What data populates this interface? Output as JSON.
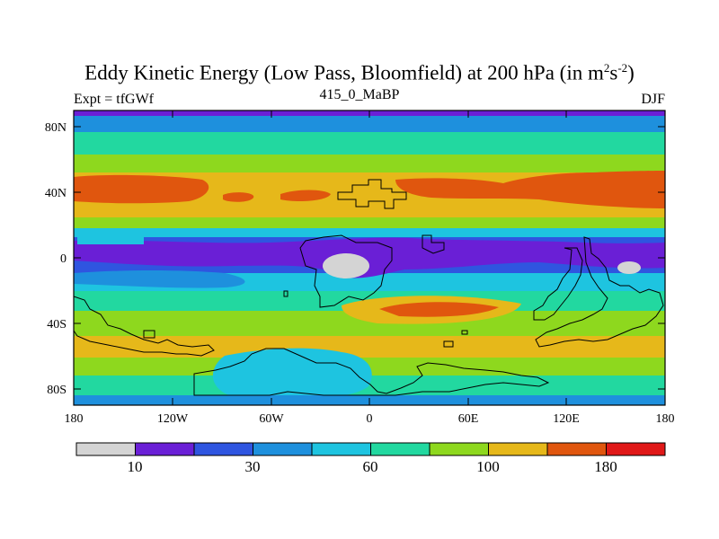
{
  "title_main": "Eddy Kinetic Energy (Low Pass, Bloomfield) at 200 hPa (in m",
  "title_sup1": "2",
  "title_mid": "s",
  "title_sup2": "-2",
  "title_end": ")",
  "experiment": "Expt = tfGWf",
  "subtitle": "415_0_MaBP",
  "season": "DJF",
  "y_ticks": [
    "80N",
    "40N",
    "0",
    "40S",
    "80S"
  ],
  "x_ticks": [
    "180",
    "120W",
    "60W",
    "0",
    "60E",
    "120E",
    "180"
  ],
  "colorbar": {
    "colors": [
      "#d4d4d4",
      "#6a1fd6",
      "#2f55e0",
      "#1e90dd",
      "#1ec4e0",
      "#22d8a0",
      "#8ed81e",
      "#e6b81a",
      "#e0560e",
      "#e01818"
    ],
    "labels": [
      "10",
      "30",
      "60",
      "100",
      "180"
    ]
  }
}
